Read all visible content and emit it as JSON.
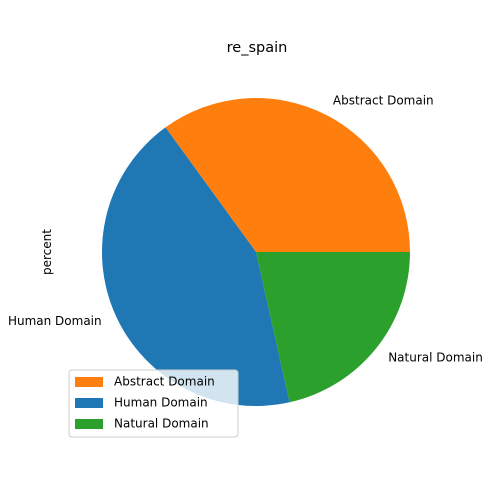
{
  "chart_data": {
    "type": "pie",
    "title": "re_spain",
    "ylabel": "percent",
    "start_angle_deg": 0,
    "direction": "counterclockwise",
    "slices": [
      {
        "label": "Abstract Domain",
        "value": 35.0,
        "color": "#ff7f0e"
      },
      {
        "label": "Human Domain",
        "value": 43.5,
        "color": "#1f77b4"
      },
      {
        "label": "Natural Domain",
        "value": 21.5,
        "color": "#2ca02c"
      }
    ],
    "legend": {
      "placement": "lower-left",
      "entries": [
        "Abstract Domain",
        "Human Domain",
        "Natural Domain"
      ]
    }
  }
}
